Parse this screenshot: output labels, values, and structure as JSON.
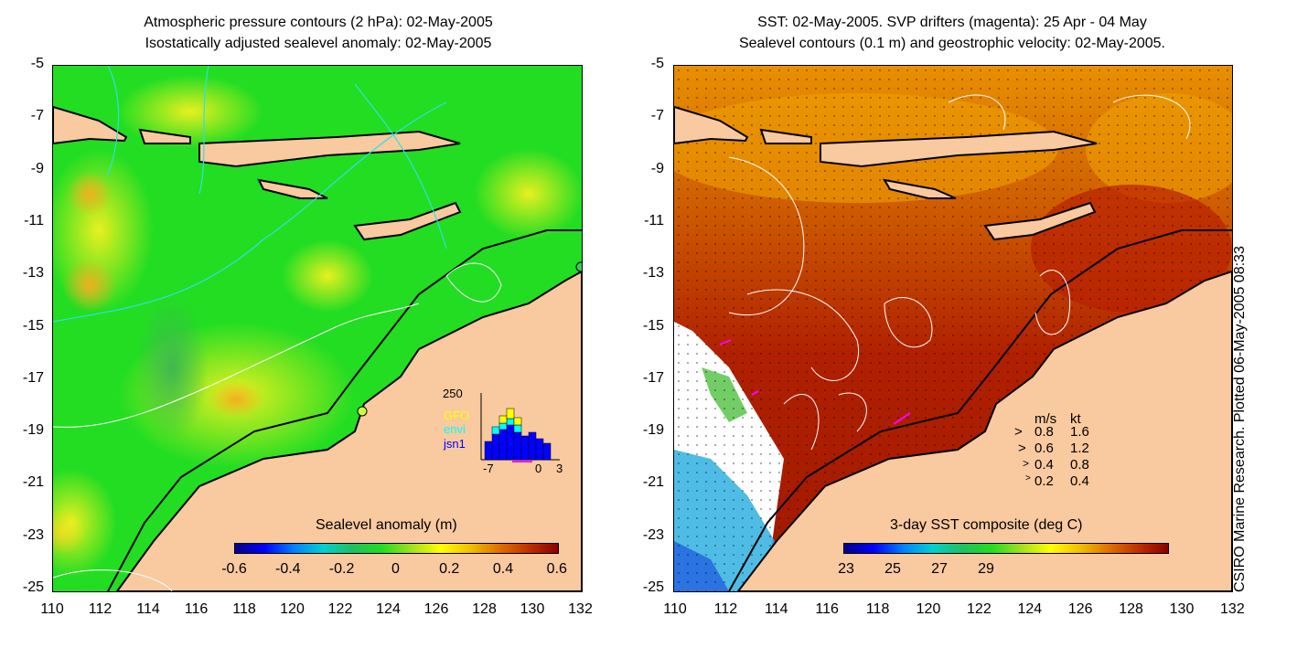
{
  "left_panel": {
    "title_line1": "Atmospheric pressure contours (2 hPa): 02-May-2005",
    "title_line2": "Isostatically adjusted sealevel anomaly: 02-May-2005",
    "colorbar_title": "Sealevel anomaly (m)",
    "colorbar_ticks": [
      "-0.6",
      "-0.4",
      "-0.2",
      "0",
      "0.2",
      "0.4",
      "0.6"
    ],
    "histogram": {
      "ymax_label": "250",
      "legend": [
        {
          "label": "GFO",
          "color": "#ffff00"
        },
        {
          "label": "envi",
          "color": "#00ffff"
        },
        {
          "label": "jsn1",
          "color": "#0000ff"
        }
      ],
      "x_labels": [
        "-7",
        "0",
        "3"
      ]
    }
  },
  "right_panel": {
    "title_line1": "SST: 02-May-2005. SVP drifters (magenta): 25 Apr - 04 May",
    "title_line2": "Sealevel contours (0.1 m) and geostrophic velocity: 02-May-2005.",
    "colorbar_title": "3-day SST composite (deg C)",
    "colorbar_ticks": [
      "23",
      "25",
      "27",
      "29"
    ],
    "velocity_legend": {
      "header_ms": "m/s",
      "header_kt": "kt",
      "rows": [
        {
          "ms": "0.8",
          "kt": "1.6"
        },
        {
          "ms": "0.6",
          "kt": "1.2"
        },
        {
          "ms": "0.4",
          "kt": "0.8"
        },
        {
          "ms": "0.2",
          "kt": "0.4"
        }
      ]
    }
  },
  "y_axis_labels": [
    "-5",
    "-7",
    "-9",
    "-11",
    "-13",
    "-15",
    "-17",
    "-19",
    "-21",
    "-23",
    "-25"
  ],
  "x_axis_labels": [
    "110",
    "112",
    "114",
    "116",
    "118",
    "120",
    "122",
    "124",
    "126",
    "128",
    "130",
    "132"
  ],
  "side_credit": "CSIRO Marine Research. Plotted 06-May-2005 08:33",
  "colors": {
    "land": "#f9c9a0",
    "sla_green": "#22dd22",
    "sst_red": "#b02000"
  }
}
